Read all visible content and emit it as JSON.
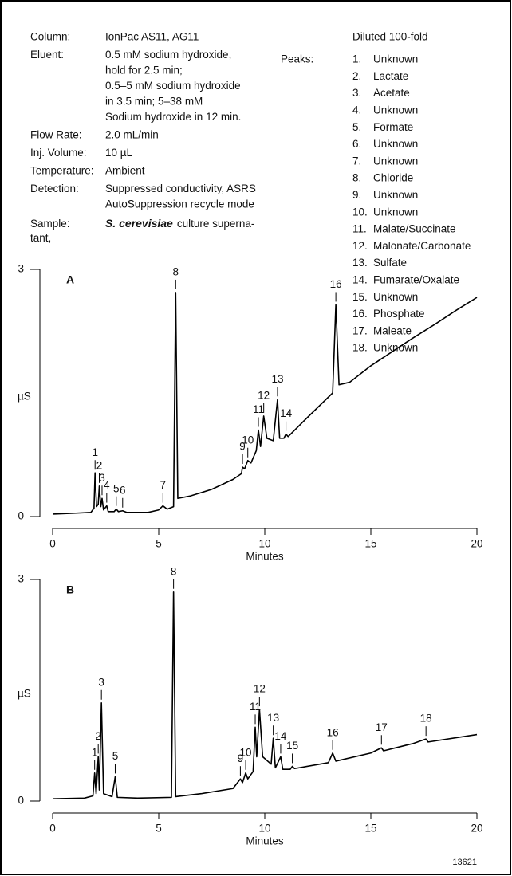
{
  "conditions": {
    "rows": [
      {
        "label": "Column:",
        "value": [
          "IonPac AS11, AG11"
        ]
      },
      {
        "label": "Eluent:",
        "value": [
          "0.5 mM sodium hydroxide,",
          "hold for 2.5 min;",
          "0.5–5 mM sodium hydroxide",
          "in 3.5 min; 5–38 mM",
          "Sodium hydroxide in 12 min."
        ]
      },
      {
        "label": "Flow Rate:",
        "value": [
          "2.0 mL/min"
        ]
      },
      {
        "label": "Inj. Volume:",
        "value": [
          "10 µL"
        ]
      },
      {
        "label": "Temperature:",
        "value": [
          "Ambient"
        ]
      },
      {
        "label": "Detection:",
        "value": [
          "Suppressed conductivity, ASRS",
          "AutoSuppression recycle mode"
        ]
      }
    ],
    "sample": {
      "label": "Sample:",
      "species": "S. cerevisiae",
      "text": "culture superna-",
      "wrap": "tant,"
    }
  },
  "peaks": {
    "note": "Diluted 100-fold",
    "label": "Peaks:",
    "items": [
      {
        "number": "1.",
        "name": "Unknown"
      },
      {
        "number": "2.",
        "name": "Lactate"
      },
      {
        "number": "3.",
        "name": "Acetate"
      },
      {
        "number": "4.",
        "name": "Unknown"
      },
      {
        "number": "5.",
        "name": "Formate"
      },
      {
        "number": "6.",
        "name": "Unknown"
      },
      {
        "number": "7.",
        "name": "Unknown"
      },
      {
        "number": "8.",
        "name": "Chloride"
      },
      {
        "number": "9.",
        "name": "Unknown"
      },
      {
        "number": "10.",
        "name": "Unknown"
      },
      {
        "number": "11.",
        "name": "Malate/Succinate"
      },
      {
        "number": "12.",
        "name": "Malonate/Carbonate"
      },
      {
        "number": "13.",
        "name": "Sulfate"
      },
      {
        "number": "14.",
        "name": "Fumarate/Oxalate"
      },
      {
        "number": "15.",
        "name": "Unknown"
      },
      {
        "number": "16.",
        "name": "Phosphate"
      },
      {
        "number": "17.",
        "name": "Maleate"
      },
      {
        "number": "18.",
        "name": "Unknown"
      }
    ]
  },
  "figure_id": "13621",
  "chart_data": [
    {
      "type": "line",
      "panel": "A",
      "xlabel": "Minutes",
      "ylabel": "µS",
      "color": "#000000",
      "xlim": [
        0,
        20
      ],
      "ylim": [
        0,
        3
      ],
      "xticks": [
        0,
        5,
        10,
        15,
        20
      ],
      "yticks": [
        0,
        3
      ],
      "x": [
        0,
        1,
        1.8,
        1.95,
        2.0,
        2.07,
        2.15,
        2.2,
        2.27,
        2.33,
        2.4,
        2.55,
        2.62,
        2.9,
        3.0,
        3.1,
        3.3,
        3.5,
        4.5,
        5.0,
        5.2,
        5.4,
        5.7,
        5.8,
        5.9,
        6.5,
        7.5,
        8.5,
        8.9,
        8.95,
        9.05,
        9.2,
        9.35,
        9.6,
        9.7,
        9.8,
        9.95,
        10.1,
        10.4,
        10.6,
        10.7,
        10.9,
        11.0,
        11.1,
        12,
        13.2,
        13.35,
        13.5,
        14,
        15,
        16,
        17,
        18,
        19,
        20
      ],
      "values": [
        0.03,
        0.04,
        0.05,
        0.1,
        0.53,
        0.12,
        0.15,
        0.37,
        0.12,
        0.22,
        0.08,
        0.13,
        0.06,
        0.06,
        0.09,
        0.06,
        0.07,
        0.05,
        0.05,
        0.08,
        0.13,
        0.09,
        0.12,
        2.72,
        0.22,
        0.25,
        0.33,
        0.45,
        0.52,
        0.6,
        0.58,
        0.68,
        0.65,
        0.8,
        1.05,
        0.85,
        1.22,
        0.95,
        0.92,
        1.42,
        0.95,
        0.95,
        1.0,
        0.97,
        1.2,
        1.5,
        2.57,
        1.6,
        1.63,
        1.83,
        2.0,
        2.17,
        2.33,
        2.5,
        2.66
      ],
      "annotations": [
        {
          "text": "1",
          "x": 2.0,
          "y": 0.53
        },
        {
          "text": "2",
          "x": 2.2,
          "y": 0.37
        },
        {
          "text": "3",
          "x": 2.33,
          "y": 0.22
        },
        {
          "text": "4",
          "x": 2.55,
          "y": 0.13
        },
        {
          "text": "5",
          "x": 3.0,
          "y": 0.09
        },
        {
          "text": "6",
          "x": 3.3,
          "y": 0.07
        },
        {
          "text": "7",
          "x": 5.2,
          "y": 0.13
        },
        {
          "text": "8",
          "x": 5.8,
          "y": 2.72
        },
        {
          "text": "9",
          "x": 8.95,
          "y": 0.6
        },
        {
          "text": "10",
          "x": 9.2,
          "y": 0.68
        },
        {
          "text": "11",
          "x": 9.7,
          "y": 1.05
        },
        {
          "text": "12",
          "x": 9.95,
          "y": 1.22
        },
        {
          "text": "13",
          "x": 10.6,
          "y": 1.42
        },
        {
          "text": "14",
          "x": 11.0,
          "y": 1.0
        },
        {
          "text": "16",
          "x": 13.35,
          "y": 2.57
        }
      ]
    },
    {
      "type": "line",
      "panel": "B",
      "xlabel": "Minutes",
      "ylabel": "µS",
      "color": "#000000",
      "xlim": [
        0,
        20
      ],
      "ylim": [
        0,
        3
      ],
      "xticks": [
        0,
        5,
        10,
        15,
        20
      ],
      "yticks": [
        0,
        3
      ],
      "x": [
        0,
        1.5,
        1.9,
        1.98,
        2.05,
        2.15,
        2.2,
        2.3,
        2.4,
        2.8,
        2.95,
        3.05,
        4,
        5.6,
        5.7,
        5.8,
        7,
        8.5,
        8.85,
        8.95,
        9.1,
        9.2,
        9.45,
        9.55,
        9.62,
        9.75,
        9.9,
        10.3,
        10.4,
        10.5,
        10.75,
        10.85,
        11.2,
        11.3,
        11.4,
        13,
        13.2,
        13.35,
        15,
        15.5,
        15.6,
        17,
        17.6,
        17.7,
        20
      ],
      "values": [
        0.03,
        0.04,
        0.07,
        0.38,
        0.1,
        0.6,
        0.15,
        1.33,
        0.1,
        0.06,
        0.33,
        0.05,
        0.04,
        0.05,
        2.83,
        0.06,
        0.1,
        0.17,
        0.3,
        0.25,
        0.38,
        0.3,
        0.4,
        1.0,
        0.6,
        1.24,
        0.6,
        0.5,
        0.85,
        0.45,
        0.6,
        0.43,
        0.43,
        0.47,
        0.44,
        0.52,
        0.65,
        0.54,
        0.65,
        0.72,
        0.68,
        0.78,
        0.84,
        0.8,
        0.9
      ],
      "annotations": [
        {
          "text": "1",
          "x": 1.98,
          "y": 0.38
        },
        {
          "text": "2",
          "x": 2.15,
          "y": 0.6
        },
        {
          "text": "3",
          "x": 2.3,
          "y": 1.33
        },
        {
          "text": "5",
          "x": 2.95,
          "y": 0.33
        },
        {
          "text": "8",
          "x": 5.7,
          "y": 2.83
        },
        {
          "text": "9",
          "x": 8.85,
          "y": 0.3
        },
        {
          "text": "10",
          "x": 9.1,
          "y": 0.38
        },
        {
          "text": "11",
          "x": 9.55,
          "y": 1.0
        },
        {
          "text": "12",
          "x": 9.75,
          "y": 1.24
        },
        {
          "text": "13",
          "x": 10.4,
          "y": 0.85
        },
        {
          "text": "14",
          "x": 10.75,
          "y": 0.6
        },
        {
          "text": "15",
          "x": 11.3,
          "y": 0.47
        },
        {
          "text": "16",
          "x": 13.2,
          "y": 0.65
        },
        {
          "text": "17",
          "x": 15.5,
          "y": 0.72
        },
        {
          "text": "18",
          "x": 17.6,
          "y": 0.84
        }
      ]
    }
  ]
}
